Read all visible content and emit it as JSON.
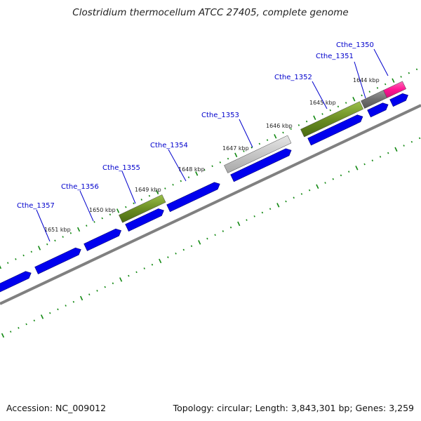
{
  "title": "Clostridium thermocellum ATCC 27405, complete genome",
  "footer": {
    "accession": "Accession: NC_009012",
    "stats": "Topology: circular; Length: 3,843,301 bp; Genes: 3,259"
  },
  "colors": {
    "cds": "#0000ee",
    "backbone": "#808080",
    "ticks": "#118811",
    "gene_label": "#0000cc",
    "green_gene": "#6b8e23",
    "light_gray_gene": "#c8c8c8",
    "dark_gray_gene": "#707070",
    "pink_gene": "#ff1493"
  },
  "kbp_labels": [
    "1644 kbp",
    "1645 kbp",
    "1646 kbp",
    "1647 kbp",
    "1648 kbp",
    "1649 kbp",
    "1650 kbp",
    "1651 kbp"
  ],
  "gene_labels": [
    "Cthe_1350",
    "Cthe_1351",
    "Cthe_1352",
    "Cthe_1353",
    "Cthe_1354",
    "Cthe_1355",
    "Cthe_1356",
    "Cthe_1357"
  ]
}
